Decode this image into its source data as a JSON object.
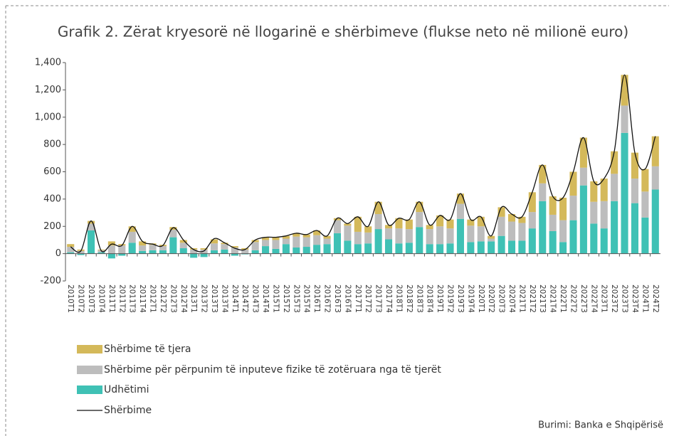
{
  "chart_data": {
    "type": "bar",
    "title": "Grafik 2. Zërat kryesorë në llogarinë e shërbimeve (flukse neto në milionë euro)",
    "source": "Burimi: Banka e Shqipërisë",
    "categories": [
      "2010T1",
      "2010T2",
      "2010T3",
      "2010T4",
      "2011T1",
      "2011T2",
      "2011T3",
      "2011T4",
      "2012T1",
      "2012T2",
      "2012T3",
      "2012T4",
      "2013T1",
      "2013T2",
      "2013T3",
      "2013T4",
      "2014T1",
      "2014T2",
      "2014T3",
      "2014T4",
      "2015T1",
      "2015T2",
      "2015T3",
      "2015T4",
      "2016T1",
      "2016T2",
      "2016T3",
      "2016T4",
      "2017T1",
      "2017T2",
      "2017T3",
      "2017T4",
      "2018T1",
      "2018T2",
      "2018T3",
      "2018T4",
      "2019T1",
      "2019T2",
      "2019T3",
      "2019T4",
      "2020T1",
      "2020T2",
      "2020T3",
      "2020T4",
      "2021T1",
      "2021T2",
      "2021T3",
      "2021T4",
      "2022T1",
      "2022T2",
      "2022T3",
      "2022T4",
      "2023T1",
      "2023T2",
      "2023T3",
      "2023T4",
      "2024T1",
      "2024T2"
    ],
    "series": [
      {
        "name": "Shërbime të tjera",
        "color": "#d4b95a",
        "values": [
          20,
          10,
          20,
          5,
          30,
          10,
          40,
          30,
          10,
          10,
          20,
          20,
          10,
          10,
          30,
          10,
          10,
          10,
          15,
          20,
          20,
          20,
          25,
          20,
          35,
          20,
          15,
          15,
          110,
          45,
          90,
          25,
          75,
          70,
          75,
          30,
          80,
          65,
          75,
          45,
          70,
          20,
          70,
          55,
          45,
          145,
          135,
          135,
          165,
          175,
          220,
          150,
          165,
          165,
          225,
          190,
          165,
          220
        ]
      },
      {
        "name": "Shërbime për përpunim të inputeve fizike të zotëruara nga të tjerët",
        "color": "#bdbdbd",
        "values": [
          40,
          20,
          50,
          15,
          60,
          60,
          80,
          40,
          40,
          30,
          55,
          40,
          30,
          30,
          50,
          40,
          45,
          30,
          60,
          45,
          65,
          40,
          80,
          70,
          70,
          40,
          95,
          110,
          90,
          80,
          110,
          80,
          110,
          100,
          110,
          110,
          130,
          110,
          110,
          120,
          110,
          20,
          140,
          140,
          130,
          120,
          130,
          120,
          160,
          180,
          130,
          160,
          200,
          200,
          200,
          180,
          190,
          170
        ]
      },
      {
        "name": "Udhëtimi",
        "color": "#3fc1b5",
        "values": [
          10,
          -10,
          170,
          10,
          -35,
          -15,
          80,
          20,
          25,
          25,
          120,
          40,
          -30,
          -25,
          25,
          30,
          -15,
          -5,
          25,
          55,
          35,
          70,
          45,
          50,
          65,
          70,
          150,
          95,
          70,
          75,
          180,
          105,
          75,
          80,
          195,
          70,
          70,
          75,
          255,
          85,
          90,
          90,
          130,
          95,
          95,
          185,
          385,
          165,
          85,
          245,
          500,
          220,
          185,
          385,
          885,
          370,
          265,
          470
        ]
      },
      {
        "name": "Shërbime",
        "type": "line",
        "color": "#111111",
        "values": [
          50,
          20,
          240,
          20,
          70,
          60,
          200,
          90,
          70,
          60,
          190,
          100,
          30,
          20,
          110,
          80,
          40,
          30,
          100,
          120,
          120,
          130,
          150,
          140,
          170,
          130,
          260,
          220,
          270,
          200,
          380,
          210,
          260,
          250,
          380,
          210,
          280,
          250,
          440,
          250,
          270,
          130,
          340,
          290,
          270,
          450,
          650,
          420,
          410,
          600,
          850,
          530,
          550,
          750,
          1310,
          740,
          620,
          860
        ]
      }
    ],
    "ylim": [
      -200,
      1400
    ],
    "yticks": [
      {
        "value": -200,
        "label": "-200"
      },
      0,
      200,
      400,
      600,
      800,
      {
        "value": 1000,
        "label": "1,000"
      },
      {
        "value": 1200,
        "label": "1,200"
      },
      {
        "value": 1400,
        "label": "1,400"
      }
    ]
  }
}
